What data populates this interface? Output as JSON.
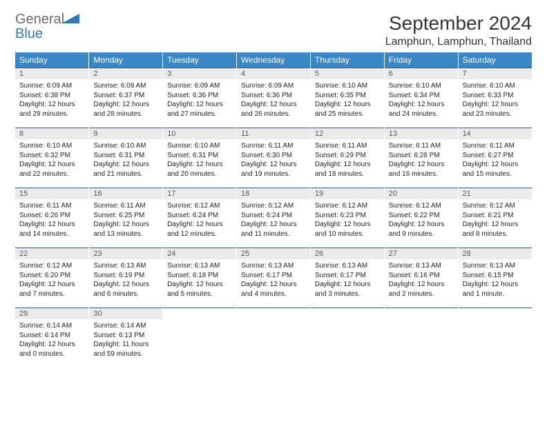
{
  "logo": {
    "text1": "General",
    "text2": "Blue",
    "accent_color": "#2f77bd",
    "gray_color": "#6b6b6b"
  },
  "title": "September 2024",
  "location": "Lamphun, Lamphun, Thailand",
  "colors": {
    "header_bg": "#3a87c8",
    "header_text": "#ffffff",
    "row_border": "#2c5a87",
    "daynum_bg": "#ebebeb",
    "text": "#222222"
  },
  "day_names": [
    "Sunday",
    "Monday",
    "Tuesday",
    "Wednesday",
    "Thursday",
    "Friday",
    "Saturday"
  ],
  "weeks": [
    [
      {
        "n": "1",
        "sr": "6:09 AM",
        "ss": "6:38 PM",
        "dl1": "Daylight: 12 hours",
        "dl2": "and 29 minutes."
      },
      {
        "n": "2",
        "sr": "6:09 AM",
        "ss": "6:37 PM",
        "dl1": "Daylight: 12 hours",
        "dl2": "and 28 minutes."
      },
      {
        "n": "3",
        "sr": "6:09 AM",
        "ss": "6:36 PM",
        "dl1": "Daylight: 12 hours",
        "dl2": "and 27 minutes."
      },
      {
        "n": "4",
        "sr": "6:09 AM",
        "ss": "6:36 PM",
        "dl1": "Daylight: 12 hours",
        "dl2": "and 26 minutes."
      },
      {
        "n": "5",
        "sr": "6:10 AM",
        "ss": "6:35 PM",
        "dl1": "Daylight: 12 hours",
        "dl2": "and 25 minutes."
      },
      {
        "n": "6",
        "sr": "6:10 AM",
        "ss": "6:34 PM",
        "dl1": "Daylight: 12 hours",
        "dl2": "and 24 minutes."
      },
      {
        "n": "7",
        "sr": "6:10 AM",
        "ss": "6:33 PM",
        "dl1": "Daylight: 12 hours",
        "dl2": "and 23 minutes."
      }
    ],
    [
      {
        "n": "8",
        "sr": "6:10 AM",
        "ss": "6:32 PM",
        "dl1": "Daylight: 12 hours",
        "dl2": "and 22 minutes."
      },
      {
        "n": "9",
        "sr": "6:10 AM",
        "ss": "6:31 PM",
        "dl1": "Daylight: 12 hours",
        "dl2": "and 21 minutes."
      },
      {
        "n": "10",
        "sr": "6:10 AM",
        "ss": "6:31 PM",
        "dl1": "Daylight: 12 hours",
        "dl2": "and 20 minutes."
      },
      {
        "n": "11",
        "sr": "6:11 AM",
        "ss": "6:30 PM",
        "dl1": "Daylight: 12 hours",
        "dl2": "and 19 minutes."
      },
      {
        "n": "12",
        "sr": "6:11 AM",
        "ss": "6:29 PM",
        "dl1": "Daylight: 12 hours",
        "dl2": "and 18 minutes."
      },
      {
        "n": "13",
        "sr": "6:11 AM",
        "ss": "6:28 PM",
        "dl1": "Daylight: 12 hours",
        "dl2": "and 16 minutes."
      },
      {
        "n": "14",
        "sr": "6:11 AM",
        "ss": "6:27 PM",
        "dl1": "Daylight: 12 hours",
        "dl2": "and 15 minutes."
      }
    ],
    [
      {
        "n": "15",
        "sr": "6:11 AM",
        "ss": "6:26 PM",
        "dl1": "Daylight: 12 hours",
        "dl2": "and 14 minutes."
      },
      {
        "n": "16",
        "sr": "6:11 AM",
        "ss": "6:25 PM",
        "dl1": "Daylight: 12 hours",
        "dl2": "and 13 minutes."
      },
      {
        "n": "17",
        "sr": "6:12 AM",
        "ss": "6:24 PM",
        "dl1": "Daylight: 12 hours",
        "dl2": "and 12 minutes."
      },
      {
        "n": "18",
        "sr": "6:12 AM",
        "ss": "6:24 PM",
        "dl1": "Daylight: 12 hours",
        "dl2": "and 11 minutes."
      },
      {
        "n": "19",
        "sr": "6:12 AM",
        "ss": "6:23 PM",
        "dl1": "Daylight: 12 hours",
        "dl2": "and 10 minutes."
      },
      {
        "n": "20",
        "sr": "6:12 AM",
        "ss": "6:22 PM",
        "dl1": "Daylight: 12 hours",
        "dl2": "and 9 minutes."
      },
      {
        "n": "21",
        "sr": "6:12 AM",
        "ss": "6:21 PM",
        "dl1": "Daylight: 12 hours",
        "dl2": "and 8 minutes."
      }
    ],
    [
      {
        "n": "22",
        "sr": "6:12 AM",
        "ss": "6:20 PM",
        "dl1": "Daylight: 12 hours",
        "dl2": "and 7 minutes."
      },
      {
        "n": "23",
        "sr": "6:13 AM",
        "ss": "6:19 PM",
        "dl1": "Daylight: 12 hours",
        "dl2": "and 6 minutes."
      },
      {
        "n": "24",
        "sr": "6:13 AM",
        "ss": "6:18 PM",
        "dl1": "Daylight: 12 hours",
        "dl2": "and 5 minutes."
      },
      {
        "n": "25",
        "sr": "6:13 AM",
        "ss": "6:17 PM",
        "dl1": "Daylight: 12 hours",
        "dl2": "and 4 minutes."
      },
      {
        "n": "26",
        "sr": "6:13 AM",
        "ss": "6:17 PM",
        "dl1": "Daylight: 12 hours",
        "dl2": "and 3 minutes."
      },
      {
        "n": "27",
        "sr": "6:13 AM",
        "ss": "6:16 PM",
        "dl1": "Daylight: 12 hours",
        "dl2": "and 2 minutes."
      },
      {
        "n": "28",
        "sr": "6:13 AM",
        "ss": "6:15 PM",
        "dl1": "Daylight: 12 hours",
        "dl2": "and 1 minute."
      }
    ],
    [
      {
        "n": "29",
        "sr": "6:14 AM",
        "ss": "6:14 PM",
        "dl1": "Daylight: 12 hours",
        "dl2": "and 0 minutes."
      },
      {
        "n": "30",
        "sr": "6:14 AM",
        "ss": "6:13 PM",
        "dl1": "Daylight: 11 hours",
        "dl2": "and 59 minutes."
      },
      null,
      null,
      null,
      null,
      null
    ]
  ],
  "labels": {
    "sunrise_prefix": "Sunrise: ",
    "sunset_prefix": "Sunset: "
  }
}
